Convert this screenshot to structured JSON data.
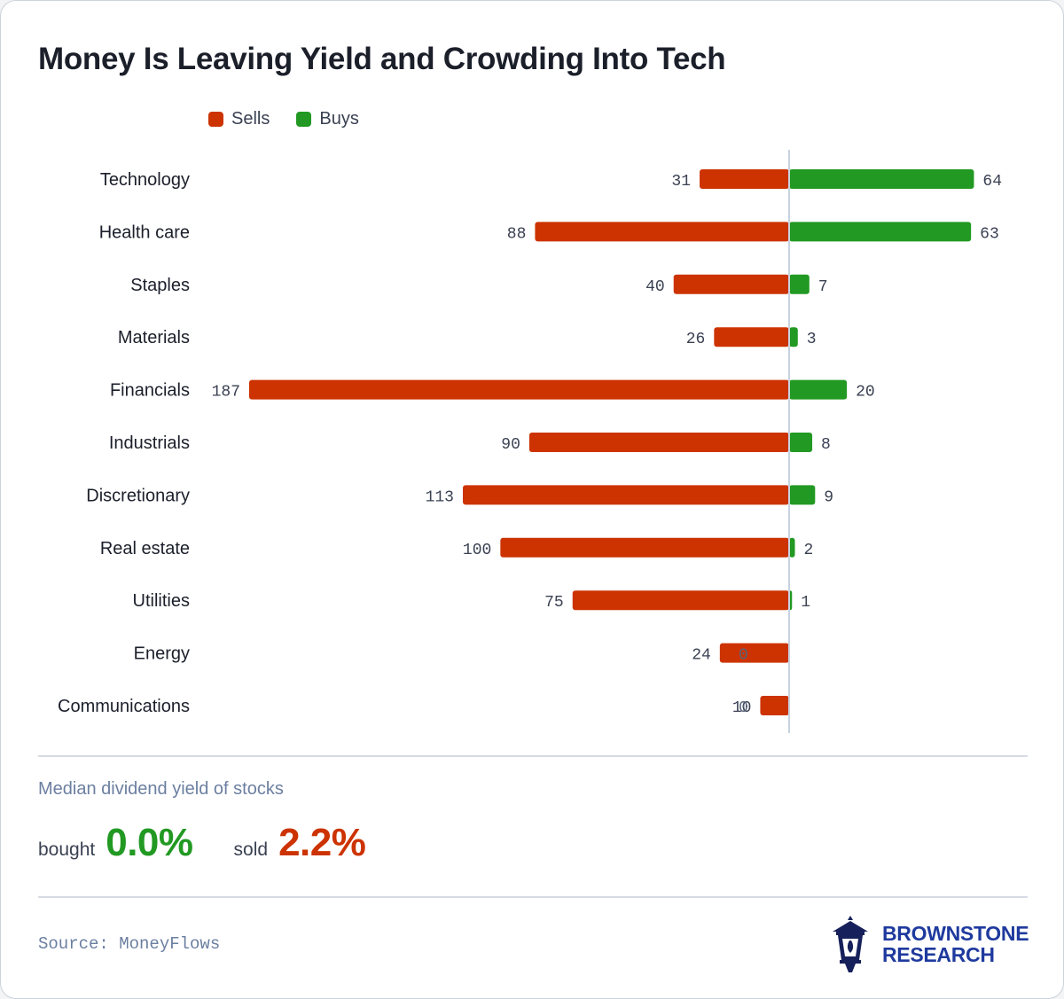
{
  "title": "Money Is Leaving Yield and Crowding Into Tech",
  "colors": {
    "sells": "#cc3300",
    "buys": "#229922",
    "axis": "#c7d3e2",
    "zero_label": "#5a6479"
  },
  "legend": {
    "sells_label": "Sells",
    "buys_label": "Buys"
  },
  "chart_data": {
    "type": "bar",
    "orientation": "horizontal-diverging",
    "categories": [
      "Technology",
      "Health care",
      "Staples",
      "Materials",
      "Financials",
      "Industrials",
      "Discretionary",
      "Real estate",
      "Utilities",
      "Energy",
      "Communications"
    ],
    "series": [
      {
        "name": "Sells",
        "values": [
          31,
          88,
          40,
          26,
          187,
          90,
          113,
          100,
          75,
          24,
          10
        ]
      },
      {
        "name": "Buys",
        "values": [
          64,
          63,
          7,
          3,
          20,
          8,
          9,
          2,
          1,
          0,
          0
        ]
      }
    ],
    "xlim": [
      -187,
      64
    ],
    "legend_position": "top-left",
    "grid": false
  },
  "yield": {
    "heading": "Median dividend yield of stocks",
    "bought_label": "bought",
    "bought_value": "0.0%",
    "sold_label": "sold",
    "sold_value": "2.2%"
  },
  "source": "Source: MoneyFlows",
  "brand": {
    "line1": "BROWNSTONE",
    "line2": "RESEARCH",
    "logo_icon": "lantern-icon"
  }
}
